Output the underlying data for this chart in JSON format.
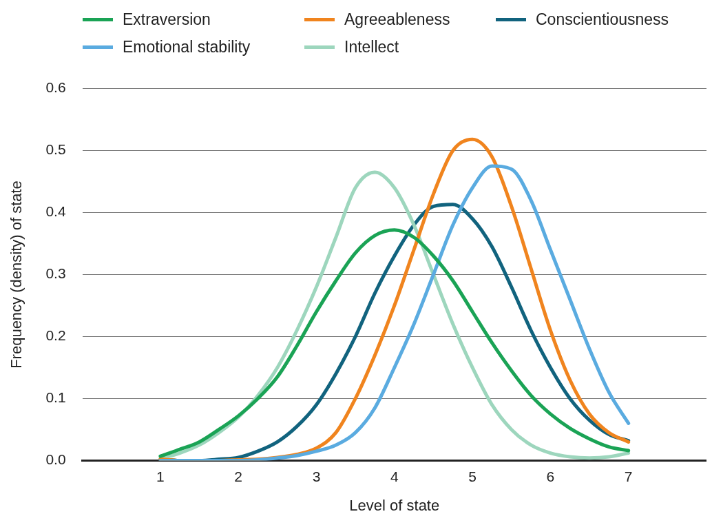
{
  "chart_data": {
    "type": "line",
    "xlabel": "Level of state",
    "ylabel": "Frequency (density) of state",
    "x": [
      1,
      1.25,
      1.5,
      1.75,
      2,
      2.25,
      2.5,
      2.75,
      3,
      3.25,
      3.5,
      3.75,
      4,
      4.25,
      4.5,
      4.75,
      5,
      5.25,
      5.5,
      5.75,
      6,
      6.25,
      6.5,
      6.75,
      7
    ],
    "series": [
      {
        "name": "Extraversion",
        "color": "#1aa355",
        "values": [
          0.007,
          0.018,
          0.03,
          0.05,
          0.072,
          0.1,
          0.135,
          0.185,
          0.24,
          0.29,
          0.335,
          0.363,
          0.372,
          0.36,
          0.33,
          0.29,
          0.24,
          0.19,
          0.145,
          0.105,
          0.075,
          0.052,
          0.035,
          0.022,
          0.016
        ]
      },
      {
        "name": "Emotional stability",
        "color": "#5aabe0",
        "values": [
          0,
          0,
          0,
          0,
          0,
          0.001,
          0.004,
          0.008,
          0.015,
          0.025,
          0.045,
          0.085,
          0.15,
          0.22,
          0.3,
          0.38,
          0.44,
          0.475,
          0.47,
          0.42,
          0.34,
          0.26,
          0.18,
          0.11,
          0.06
        ]
      },
      {
        "name": "Agreeableness",
        "color": "#f0841e",
        "values": [
          0.002,
          0,
          0,
          0,
          0.001,
          0.002,
          0.005,
          0.01,
          0.02,
          0.045,
          0.1,
          0.17,
          0.25,
          0.34,
          0.43,
          0.5,
          0.518,
          0.49,
          0.41,
          0.31,
          0.21,
          0.13,
          0.075,
          0.045,
          0.03
        ]
      },
      {
        "name": "Intellect",
        "color": "#9dd6bd",
        "values": [
          0.003,
          0.012,
          0.025,
          0.045,
          0.07,
          0.105,
          0.15,
          0.21,
          0.28,
          0.36,
          0.44,
          0.465,
          0.44,
          0.38,
          0.3,
          0.22,
          0.15,
          0.09,
          0.05,
          0.025,
          0.012,
          0.006,
          0.004,
          0.006,
          0.012
        ]
      },
      {
        "name": "Conscientiousness",
        "color": "#11637e",
        "values": [
          0.002,
          0,
          0,
          0.002,
          0.005,
          0.015,
          0.03,
          0.055,
          0.09,
          0.14,
          0.2,
          0.27,
          0.33,
          0.38,
          0.41,
          0.413,
          0.39,
          0.345,
          0.28,
          0.21,
          0.15,
          0.1,
          0.065,
          0.042,
          0.032
        ]
      }
    ],
    "xlim": [
      0,
      8
    ],
    "xticks": [
      1,
      2,
      3,
      4,
      5,
      6,
      7
    ],
    "ylim": [
      0,
      0.6
    ],
    "yticks": [
      {
        "value": 0,
        "label": "0.0"
      },
      0.1,
      0.2,
      0.3,
      0.4,
      0.5,
      0.6
    ],
    "grid": "y",
    "legend": "top",
    "marker": "none",
    "line_style": "solid"
  }
}
